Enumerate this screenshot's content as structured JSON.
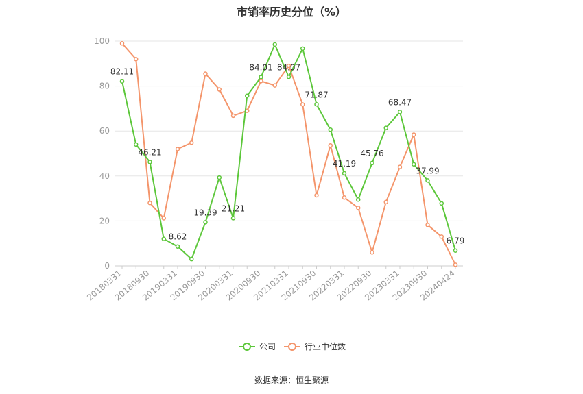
{
  "chart_data": {
    "type": "line",
    "title": "市销率历史分位（%）",
    "source": "数据来源：恒生聚源",
    "ylim": [
      0,
      100
    ],
    "y_ticks": [
      "0",
      "20",
      "40",
      "60",
      "80",
      "100"
    ],
    "x_tick_labels": [
      "20180331",
      "20180930",
      "20190331",
      "20190930",
      "20200331",
      "20200930",
      "20210331",
      "20210930",
      "20220331",
      "20220930",
      "20230331",
      "20230930",
      "20240424"
    ],
    "grid": "horizontal",
    "legend_position": "bottom",
    "series": [
      {
        "name": "公司",
        "color": "#5cc73a",
        "values": [
          82.11,
          54.0,
          46.21,
          12.0,
          8.62,
          3.0,
          19.39,
          39.3,
          21.21,
          75.7,
          84.01,
          98.5,
          84.07,
          96.7,
          71.87,
          60.6,
          41.19,
          29.5,
          45.76,
          61.4,
          68.47,
          45.2,
          37.99,
          27.8,
          6.79
        ],
        "labels": {
          "0": "82.11",
          "2": "46.21",
          "4": "8.62",
          "6": "19.39",
          "8": "21.21",
          "10": "84.01",
          "12": "84.07",
          "14": "71.87",
          "16": "41.19",
          "18": "45.76",
          "20": "68.47",
          "22": "37.99",
          "24": "6.79"
        }
      },
      {
        "name": "行业中位数",
        "color": "#f4956b",
        "values": [
          99.0,
          92.0,
          28.0,
          21.2,
          52.0,
          54.8,
          85.5,
          78.5,
          66.8,
          69.0,
          82.2,
          80.3,
          89.0,
          71.8,
          31.4,
          53.6,
          30.4,
          25.8,
          6.0,
          28.4,
          44.0,
          58.4,
          18.2,
          13.0,
          0.5
        ]
      }
    ]
  }
}
